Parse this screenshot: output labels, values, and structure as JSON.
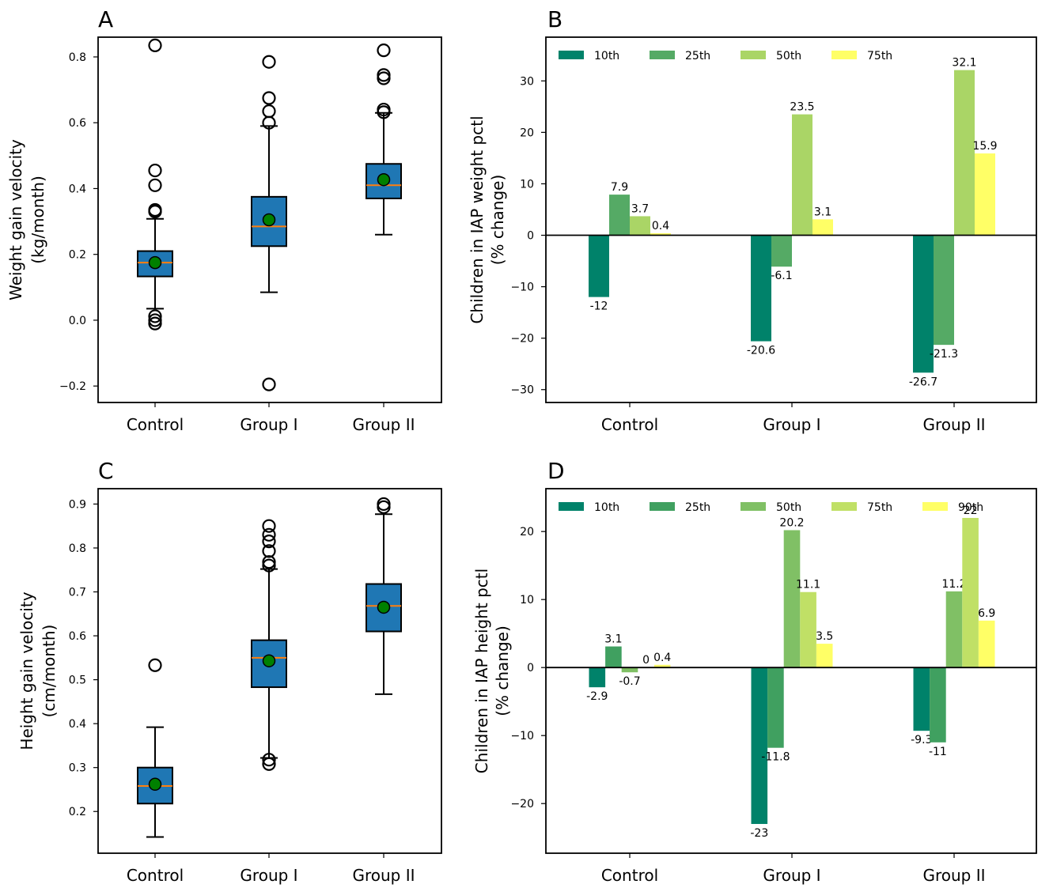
{
  "chart_data": [
    {
      "panel": "A",
      "type": "box",
      "ylabel_lines": [
        "Weight gain velocity",
        "(kg/month)"
      ],
      "categories": [
        "Control",
        "Group I",
        "Group II"
      ],
      "ylim": [
        -0.25,
        0.86
      ],
      "yticks": [
        -0.2,
        0.0,
        0.2,
        0.4,
        0.6,
        0.8
      ],
      "ytick_labels": [
        "−0.2",
        "0.0",
        "0.2",
        "0.4",
        "0.6",
        "0.8"
      ],
      "boxes": [
        {
          "q1": 0.133,
          "median": 0.175,
          "q3": 0.21,
          "whisker_low": 0.035,
          "whisker_high": 0.308,
          "mean": 0.175,
          "outliers": [
            0.835,
            0.455,
            0.41,
            0.335,
            0.33,
            0.012,
            0.0,
            -0.01
          ]
        },
        {
          "q1": 0.225,
          "median": 0.285,
          "q3": 0.375,
          "whisker_low": 0.085,
          "whisker_high": 0.59,
          "mean": 0.305,
          "outliers": [
            0.785,
            0.675,
            0.635,
            0.6,
            -0.195
          ]
        },
        {
          "q1": 0.37,
          "median": 0.41,
          "q3": 0.475,
          "whisker_low": 0.26,
          "whisker_high": 0.63,
          "mean": 0.427,
          "outliers": [
            0.82,
            0.745,
            0.735,
            0.64,
            0.632
          ]
        }
      ],
      "box_color": "#1f77b4",
      "median_color": "#ff7f0e",
      "mean_color": "#008000"
    },
    {
      "panel": "B",
      "type": "bar",
      "ylabel_lines": [
        "Children in IAP weight pctl",
        "(% change)"
      ],
      "categories": [
        "Control",
        "Group I",
        "Group II"
      ],
      "ylim": [
        -32.5,
        38.5
      ],
      "yticks": [
        -30,
        -20,
        -10,
        0,
        10,
        20,
        30
      ],
      "ytick_labels": [
        "−30",
        "−20",
        "−10",
        "0",
        "10",
        "20",
        "30"
      ],
      "series": [
        {
          "name": "10th",
          "color": "#00826a",
          "values": [
            -12,
            -20.6,
            -26.7
          ],
          "labels": [
            "-12",
            "-20.6",
            "-26.7"
          ]
        },
        {
          "name": "25th",
          "color": "#55aa65",
          "values": [
            7.9,
            -6.1,
            -21.3
          ],
          "labels": [
            "7.9",
            "-6.1",
            "-21.3"
          ]
        },
        {
          "name": "50th",
          "color": "#aad566",
          "values": [
            3.7,
            23.5,
            32.1
          ],
          "labels": [
            "3.7",
            "23.5",
            "32.1"
          ]
        },
        {
          "name": "75th",
          "color": "#ffff66",
          "values": [
            0.4,
            3.1,
            15.9
          ],
          "labels": [
            "0.4",
            "3.1",
            "15.9"
          ]
        }
      ]
    },
    {
      "panel": "C",
      "type": "box",
      "ylabel_lines": [
        "Height gain velocity",
        "(cm/month)"
      ],
      "categories": [
        "Control",
        "Group I",
        "Group II"
      ],
      "ylim": [
        0.105,
        0.935
      ],
      "yticks": [
        0.2,
        0.3,
        0.4,
        0.5,
        0.6,
        0.7,
        0.8,
        0.9
      ],
      "ytick_labels": [
        "0.2",
        "0.3",
        "0.4",
        "0.5",
        "0.6",
        "0.7",
        "0.8",
        "0.9"
      ],
      "boxes": [
        {
          "q1": 0.218,
          "median": 0.258,
          "q3": 0.3,
          "whisker_low": 0.142,
          "whisker_high": 0.392,
          "mean": 0.262,
          "outliers": [
            0.533
          ]
        },
        {
          "q1": 0.483,
          "median": 0.55,
          "q3": 0.59,
          "whisker_low": 0.322,
          "whisker_high": 0.752,
          "mean": 0.543,
          "outliers": [
            0.85,
            0.83,
            0.815,
            0.793,
            0.768,
            0.76,
            0.318,
            0.308
          ]
        },
        {
          "q1": 0.61,
          "median": 0.668,
          "q3": 0.718,
          "whisker_low": 0.467,
          "whisker_high": 0.877,
          "mean": 0.665,
          "outliers": [
            0.9,
            0.893
          ]
        }
      ],
      "box_color": "#1f77b4",
      "median_color": "#ff7f0e",
      "mean_color": "#008000"
    },
    {
      "panel": "D",
      "type": "bar",
      "ylabel_lines": [
        "Children in  IAP height pctl",
        "(% change)"
      ],
      "categories": [
        "Control",
        "Group I",
        "Group II"
      ],
      "ylim": [
        -27.3,
        26.3
      ],
      "yticks": [
        -20,
        -10,
        0,
        10,
        20
      ],
      "ytick_labels": [
        "−20",
        "−10",
        "0",
        "10",
        "20"
      ],
      "series": [
        {
          "name": "10th",
          "color": "#00826a",
          "values": [
            -2.9,
            -23,
            -9.3
          ],
          "labels": [
            "-2.9",
            "-23",
            "-9.3"
          ]
        },
        {
          "name": "25th",
          "color": "#40a060",
          "values": [
            3.1,
            -11.8,
            -11
          ],
          "labels": [
            "3.1",
            "-11.8",
            "-11"
          ]
        },
        {
          "name": "50th",
          "color": "#80c065",
          "values": [
            -0.7,
            20.2,
            11.2
          ],
          "labels": [
            "-0.7",
            "20.2",
            "11.2"
          ]
        },
        {
          "name": "75th",
          "color": "#c0e066",
          "values": [
            0,
            11.1,
            22
          ],
          "labels": [
            "0",
            "11.1",
            "22"
          ]
        },
        {
          "name": "90th",
          "color": "#ffff66",
          "values": [
            0.4,
            3.5,
            6.9
          ],
          "labels": [
            "0.4",
            "3.5",
            "6.9"
          ]
        }
      ]
    }
  ]
}
